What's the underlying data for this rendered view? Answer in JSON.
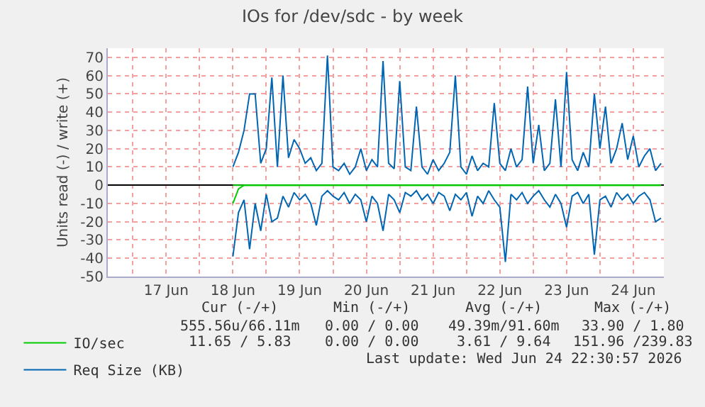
{
  "chart_data": {
    "type": "line",
    "title": "IOs for /dev/sdc - by week",
    "ylabel": "Units read (-) / write (+)",
    "x": [
      "2026-06-18T12:00",
      "2026-06-18T14:00",
      "2026-06-18T16:00",
      "2026-06-18T18:00",
      "2026-06-18T20:00",
      "2026-06-18T22:00",
      "2026-06-19T00:00",
      "2026-06-19T02:00",
      "2026-06-19T04:00",
      "2026-06-19T06:00",
      "2026-06-19T08:00",
      "2026-06-19T10:00",
      "2026-06-19T12:00",
      "2026-06-19T14:00",
      "2026-06-19T16:00",
      "2026-06-19T18:00",
      "2026-06-19T20:00",
      "2026-06-19T22:00",
      "2026-06-20T00:00",
      "2026-06-20T02:00",
      "2026-06-20T04:00",
      "2026-06-20T06:00",
      "2026-06-20T08:00",
      "2026-06-20T10:00",
      "2026-06-20T12:00",
      "2026-06-20T14:00",
      "2026-06-20T16:00",
      "2026-06-20T18:00",
      "2026-06-20T20:00",
      "2026-06-20T22:00",
      "2026-06-21T00:00",
      "2026-06-21T02:00",
      "2026-06-21T04:00",
      "2026-06-21T06:00",
      "2026-06-21T08:00",
      "2026-06-21T10:00",
      "2026-06-21T12:00",
      "2026-06-21T14:00",
      "2026-06-21T16:00",
      "2026-06-21T18:00",
      "2026-06-21T20:00",
      "2026-06-21T22:00",
      "2026-06-22T00:00",
      "2026-06-22T02:00",
      "2026-06-22T04:00",
      "2026-06-22T06:00",
      "2026-06-22T08:00",
      "2026-06-22T10:00",
      "2026-06-22T12:00",
      "2026-06-22T14:00",
      "2026-06-22T16:00",
      "2026-06-22T18:00",
      "2026-06-22T20:00",
      "2026-06-22T22:00",
      "2026-06-23T00:00",
      "2026-06-23T02:00",
      "2026-06-23T04:00",
      "2026-06-23T06:00",
      "2026-06-23T08:00",
      "2026-06-23T10:00",
      "2026-06-23T12:00",
      "2026-06-23T14:00",
      "2026-06-23T16:00",
      "2026-06-23T18:00",
      "2026-06-23T20:00",
      "2026-06-23T22:00",
      "2026-06-24T00:00",
      "2026-06-24T02:00",
      "2026-06-24T04:00",
      "2026-06-24T06:00",
      "2026-06-24T08:00",
      "2026-06-24T10:00",
      "2026-06-24T12:00",
      "2026-06-24T14:00",
      "2026-06-24T16:00",
      "2026-06-24T18:00",
      "2026-06-24T20:00",
      "2026-06-24T22:00"
    ],
    "series": [
      {
        "name": "IO/sec",
        "color": "#00cc00",
        "values": [
          0,
          0,
          0,
          0,
          0,
          0,
          0,
          0,
          0,
          0,
          0,
          0,
          0,
          0,
          0,
          0,
          0,
          0,
          0,
          0,
          0,
          0,
          0,
          0,
          0,
          0,
          0,
          0,
          0,
          0,
          0,
          0,
          0,
          0,
          0,
          0,
          0,
          0,
          0,
          0,
          0,
          0,
          0,
          0,
          0,
          0,
          0,
          0,
          0,
          0,
          0,
          0,
          0,
          0,
          0,
          0,
          0,
          0,
          0,
          0,
          0,
          0,
          0,
          0,
          0,
          0,
          0,
          0,
          0,
          0,
          0,
          0,
          0,
          0,
          0,
          0,
          0,
          0
        ]
      },
      {
        "color": "#00cc00",
        "values": [
          -10,
          -2,
          0,
          0,
          0,
          0,
          0,
          0,
          0,
          0,
          0,
          0,
          0,
          0,
          0,
          0,
          0,
          0,
          0,
          0,
          0,
          0,
          0,
          0,
          0,
          0,
          0,
          0,
          0,
          0,
          0,
          0,
          0,
          0,
          0,
          0,
          0,
          0,
          0,
          0,
          0,
          0,
          0,
          0,
          0,
          0,
          0,
          0,
          0,
          0,
          0,
          0,
          0,
          0,
          0,
          0,
          0,
          0,
          0,
          0,
          0,
          0,
          0,
          0,
          0,
          0,
          0,
          0,
          0,
          0,
          0,
          0,
          0,
          0,
          0,
          0,
          0,
          0
        ]
      },
      {
        "name": "Req Size (KB)",
        "color": "#0066b3",
        "values": [
          10,
          18,
          30,
          50,
          50,
          12,
          20,
          59,
          10,
          60,
          15,
          25,
          20,
          12,
          15,
          8,
          12,
          71,
          10,
          8,
          12,
          6,
          10,
          20,
          8,
          14,
          10,
          68,
          12,
          9,
          57,
          10,
          8,
          43,
          10,
          6,
          14,
          8,
          12,
          18,
          60,
          10,
          6,
          16,
          8,
          12,
          10,
          45,
          12,
          8,
          20,
          10,
          14,
          54,
          12,
          33,
          8,
          12,
          47,
          10,
          62,
          14,
          8,
          18,
          10,
          50,
          20,
          43,
          12,
          20,
          34,
          14,
          27,
          10,
          16,
          20,
          8,
          12
        ]
      },
      {
        "color": "#0066b3",
        "values": [
          -39,
          -15,
          -8,
          -35,
          -10,
          -25,
          -5,
          -20,
          -18,
          -6,
          -12,
          -4,
          -8,
          -5,
          -10,
          -22,
          -6,
          -3,
          -6,
          -8,
          -4,
          -10,
          -5,
          -8,
          -20,
          -6,
          -10,
          -25,
          -5,
          -8,
          -15,
          -4,
          -6,
          -3,
          -8,
          -5,
          -10,
          -4,
          -6,
          -14,
          -5,
          -8,
          -4,
          -17,
          -6,
          -10,
          -3,
          -8,
          -12,
          -42,
          -5,
          -8,
          -4,
          -10,
          -6,
          -3,
          -8,
          -12,
          -5,
          -10,
          -23,
          -6,
          -4,
          -10,
          -5,
          -38,
          -8,
          -6,
          -12,
          -4,
          -8,
          -5,
          -10,
          -6,
          -4,
          -8,
          -20,
          -18
        ]
      }
    ],
    "xlim": [
      "2026-06-16T15:00",
      "2026-06-24T23:00"
    ],
    "xticks": [
      {
        "value": "2026-06-17T00:00",
        "label": null
      },
      {
        "value": "2026-06-17T12:00",
        "label": "17 Jun"
      },
      {
        "value": "2026-06-18T00:00",
        "label": null
      },
      {
        "value": "2026-06-18T12:00",
        "label": "18 Jun"
      },
      {
        "value": "2026-06-19T00:00",
        "label": null
      },
      {
        "value": "2026-06-19T12:00",
        "label": "19 Jun"
      },
      {
        "value": "2026-06-20T00:00",
        "label": null
      },
      {
        "value": "2026-06-20T12:00",
        "label": "20 Jun"
      },
      {
        "value": "2026-06-21T00:00",
        "label": null
      },
      {
        "value": "2026-06-21T12:00",
        "label": "21 Jun"
      },
      {
        "value": "2026-06-22T00:00",
        "label": null
      },
      {
        "value": "2026-06-22T12:00",
        "label": "22 Jun"
      },
      {
        "value": "2026-06-23T00:00",
        "label": null
      },
      {
        "value": "2026-06-23T12:00",
        "label": "23 Jun"
      },
      {
        "value": "2026-06-24T00:00",
        "label": null
      },
      {
        "value": "2026-06-24T12:00",
        "label": "24 Jun"
      }
    ],
    "ylim": [
      -50,
      75
    ],
    "yticks": [
      -50,
      -40,
      -30,
      -20,
      -10,
      0,
      10,
      20,
      30,
      40,
      50,
      60,
      70
    ],
    "grid": true,
    "legend": "bottom",
    "marker": "none",
    "line_style": "solid",
    "annotations": [
      "Cur (-/+)",
      "Min (-/+)",
      "Avg (-/+)",
      "Max (-/+)",
      "555.56u/66.11m",
      "0.00 / 0.00",
      "49.39m/91.60m",
      "33.90 / 1.80",
      "11.65 / 5.83",
      "0.00 / 0.00",
      "3.61 / 9.64",
      "151.96 /239.83",
      "Last update: Wed Jun 24 22:30:57 2026"
    ]
  }
}
